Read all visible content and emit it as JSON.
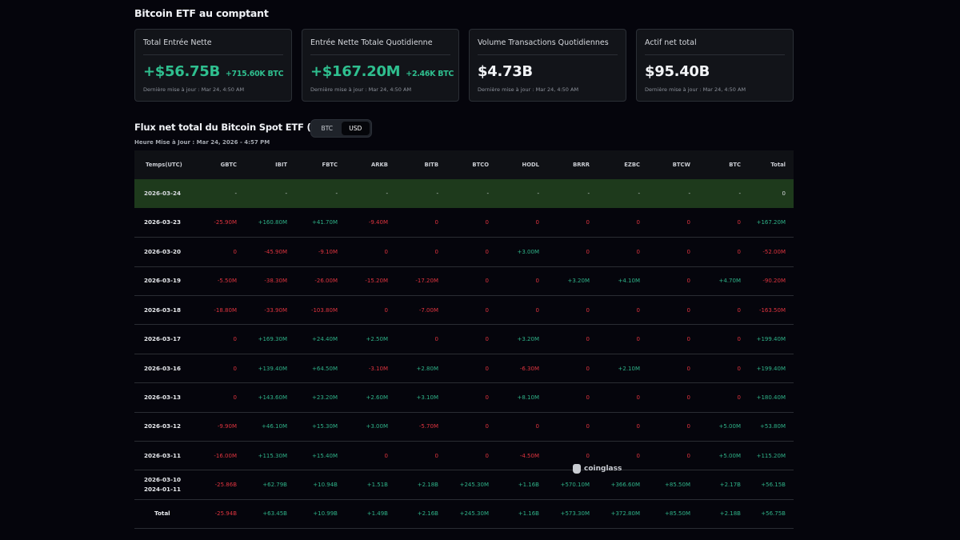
{
  "section": {
    "title": "Bitcoin ETF au comptant"
  },
  "cards": [
    {
      "title": "Total Entrée Nette",
      "value": "+$56.75B",
      "sub": "+715.60K BTC",
      "tone": "pos",
      "updated": "Dernière mise à jour : Mar 24, 4:50 AM"
    },
    {
      "title": "Entrée Nette Totale Quotidienne",
      "value": "+$167.20M",
      "sub": "+2.46K BTC",
      "tone": "pos",
      "updated": "Dernière mise à jour : Mar 24, 4:50 AM"
    },
    {
      "title": "Volume Transactions Quotidiennes",
      "value": "$4.73B",
      "sub": "",
      "tone": "neu",
      "updated": "Dernière mise à jour : Mar 24, 4:50 AM"
    },
    {
      "title": "Actif net total",
      "value": "$95.40B",
      "sub": "",
      "tone": "neu",
      "updated": "Dernière mise à jour : Mar 24, 4:50 AM"
    }
  ],
  "flux": {
    "title": "Flux net total du Bitcoin Spot ETF (USD)",
    "toggle": {
      "options": [
        "BTC",
        "USD"
      ],
      "selected": "USD"
    },
    "updated": "Heure Mise à Jour : Mar 24, 2026 - 4:57 PM"
  },
  "table": {
    "columns": [
      "Temps(UTC)",
      "GBTC",
      "IBIT",
      "FBTC",
      "ARKB",
      "BITB",
      "BTCO",
      "HODL",
      "BRRR",
      "EZBC",
      "BTCW",
      "BTC",
      "Total"
    ],
    "rows": [
      {
        "date": "2026-03-24",
        "highlight": true,
        "values": [
          "-",
          "-",
          "-",
          "-",
          "-",
          "-",
          "-",
          "-",
          "-",
          "-",
          "-",
          "0"
        ]
      },
      {
        "date": "2026-03-23",
        "values": [
          "-25.90M",
          "+160.80M",
          "+41.70M",
          "-9.40M",
          "0",
          "0",
          "0",
          "0",
          "0",
          "0",
          "0",
          "+167.20M"
        ]
      },
      {
        "date": "2026-03-20",
        "values": [
          "0",
          "-45.90M",
          "-9.10M",
          "0",
          "0",
          "0",
          "+3.00M",
          "0",
          "0",
          "0",
          "0",
          "-52.00M"
        ]
      },
      {
        "date": "2026-03-19",
        "values": [
          "-5.50M",
          "-38.30M",
          "-26.00M",
          "-15.20M",
          "-17.20M",
          "0",
          "0",
          "+3.20M",
          "+4.10M",
          "0",
          "+4.70M",
          "-90.20M"
        ]
      },
      {
        "date": "2026-03-18",
        "values": [
          "-18.80M",
          "-33.90M",
          "-103.80M",
          "0",
          "-7.00M",
          "0",
          "0",
          "0",
          "0",
          "0",
          "0",
          "-163.50M"
        ]
      },
      {
        "date": "2026-03-17",
        "values": [
          "0",
          "+169.30M",
          "+24.40M",
          "+2.50M",
          "0",
          "0",
          "+3.20M",
          "0",
          "0",
          "0",
          "0",
          "+199.40M"
        ]
      },
      {
        "date": "2026-03-16",
        "values": [
          "0",
          "+139.40M",
          "+64.50M",
          "-3.10M",
          "+2.80M",
          "0",
          "-6.30M",
          "0",
          "+2.10M",
          "0",
          "0",
          "+199.40M"
        ]
      },
      {
        "date": "2026-03-13",
        "values": [
          "0",
          "+143.60M",
          "+23.20M",
          "+2.60M",
          "+3.10M",
          "0",
          "+8.10M",
          "0",
          "0",
          "0",
          "0",
          "+180.40M"
        ]
      },
      {
        "date": "2026-03-12",
        "values": [
          "-9.90M",
          "+46.10M",
          "+15.30M",
          "+3.00M",
          "-5.70M",
          "0",
          "0",
          "0",
          "0",
          "0",
          "+5.00M",
          "+53.80M"
        ]
      },
      {
        "date": "2026-03-11",
        "values": [
          "-16.00M",
          "+115.30M",
          "+15.40M",
          "0",
          "0",
          "0",
          "-4.50M",
          "0",
          "0",
          "0",
          "+5.00M",
          "+115.20M"
        ]
      },
      {
        "date": "2026-03-10",
        "date2": "2024-01-11",
        "values": [
          "-25.86B",
          "+62.79B",
          "+10.94B",
          "+1.51B",
          "+2.18B",
          "+245.30M",
          "+1.16B",
          "+570.10M",
          "+366.60M",
          "+85.50M",
          "+2.17B",
          "+56.15B"
        ]
      },
      {
        "date": "Total",
        "total": true,
        "values": [
          "-25.94B",
          "+63.45B",
          "+10.99B",
          "+1.49B",
          "+2.16B",
          "+245.30M",
          "+1.16B",
          "+573.30M",
          "+372.80M",
          "+85.50M",
          "+2.18B",
          "+56.75B"
        ]
      }
    ]
  },
  "watermark": {
    "label": "coinglass"
  },
  "colors": {
    "positive": "#2fb389",
    "negative": "#e0343f",
    "highlight_row": "#1e3a1c",
    "background": "#05050c",
    "card": "#121419"
  }
}
